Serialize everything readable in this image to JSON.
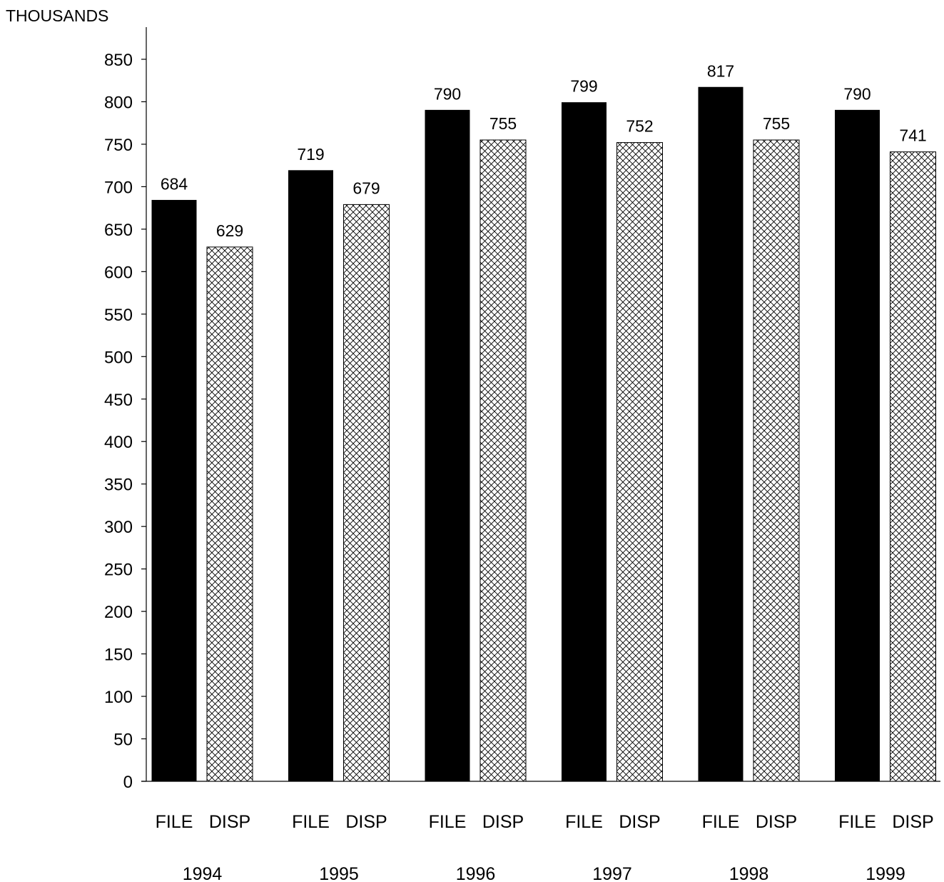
{
  "chart_data": {
    "type": "bar",
    "ylabel": "THOUSANDS",
    "ylim": [
      0,
      850
    ],
    "ytick_step": 50,
    "grid": false,
    "legend": "none",
    "categories": [
      "1994",
      "1995",
      "1996",
      "1997",
      "1998",
      "1999"
    ],
    "bar_labels": [
      "FILE",
      "DISP"
    ],
    "series": [
      {
        "name": "FILE",
        "values": [
          684,
          719,
          790,
          799,
          817,
          790
        ],
        "fill": "solid",
        "color": "#000000"
      },
      {
        "name": "DISP",
        "values": [
          629,
          679,
          755,
          752,
          755,
          741
        ],
        "fill": "crosshatch",
        "color": "#000000"
      }
    ]
  }
}
